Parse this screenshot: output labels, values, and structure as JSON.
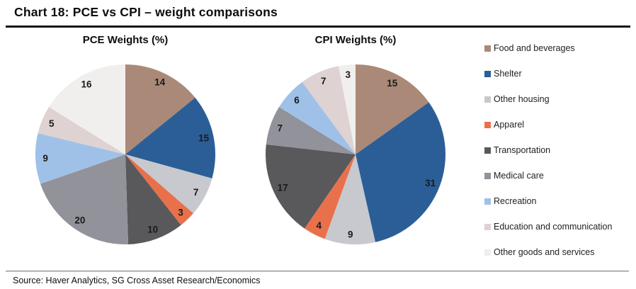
{
  "header": {
    "title": "Chart 18: PCE vs CPI – weight comparisons"
  },
  "chart_data": [
    {
      "type": "pie",
      "title": "PCE Weights (%)",
      "categories": [
        "Food and beverages",
        "Shelter",
        "Other housing",
        "Apparel",
        "Transportation",
        "Medical care",
        "Recreation",
        "Education and communication",
        "Other goods and services"
      ],
      "values": [
        14,
        15,
        7,
        3,
        10,
        20,
        9,
        5,
        16
      ],
      "colors": [
        "#AA8978",
        "#2B5E96",
        "#C7C9CE",
        "#E8714C",
        "#59595B",
        "#92929B",
        "#9FC1E7",
        "#DED2D2",
        "#F0EFED"
      ],
      "start_angle_deg": 0,
      "direction": "clockwise",
      "label_style": "value-inside",
      "label_radius_fraction": 0.89
    },
    {
      "type": "pie",
      "title": "CPI Weights (%)",
      "categories": [
        "Food and beverages",
        "Shelter",
        "Other housing",
        "Apparel",
        "Transportation",
        "Medical care",
        "Recreation",
        "Education and communication",
        "Other goods and services"
      ],
      "values": [
        15,
        31,
        9,
        4,
        17,
        7,
        6,
        7,
        3
      ],
      "colors": [
        "#AA8978",
        "#2B5E96",
        "#C7C9CE",
        "#E8714C",
        "#59595B",
        "#92929B",
        "#9FC1E7",
        "#DED2D2",
        "#F0EFED"
      ],
      "start_angle_deg": 0,
      "direction": "clockwise",
      "label_style": "value-inside",
      "label_radius_fraction": 0.89
    }
  ],
  "legend": {
    "position": "right",
    "items": [
      {
        "label": "Food and beverages",
        "color": "#AA8978"
      },
      {
        "label": "Shelter",
        "color": "#2B5E96"
      },
      {
        "label": "Other housing",
        "color": "#C7C9CE"
      },
      {
        "label": "Apparel",
        "color": "#E8714C"
      },
      {
        "label": "Transportation",
        "color": "#59595B"
      },
      {
        "label": "Medical care",
        "color": "#92929B"
      },
      {
        "label": "Recreation",
        "color": "#9FC1E7"
      },
      {
        "label": "Education and communication",
        "color": "#DED2D2"
      },
      {
        "label": "Other goods and services",
        "color": "#F0EFED"
      }
    ]
  },
  "footer": {
    "source": "Source: Haver Analytics, SG Cross Asset Research/Economics"
  }
}
